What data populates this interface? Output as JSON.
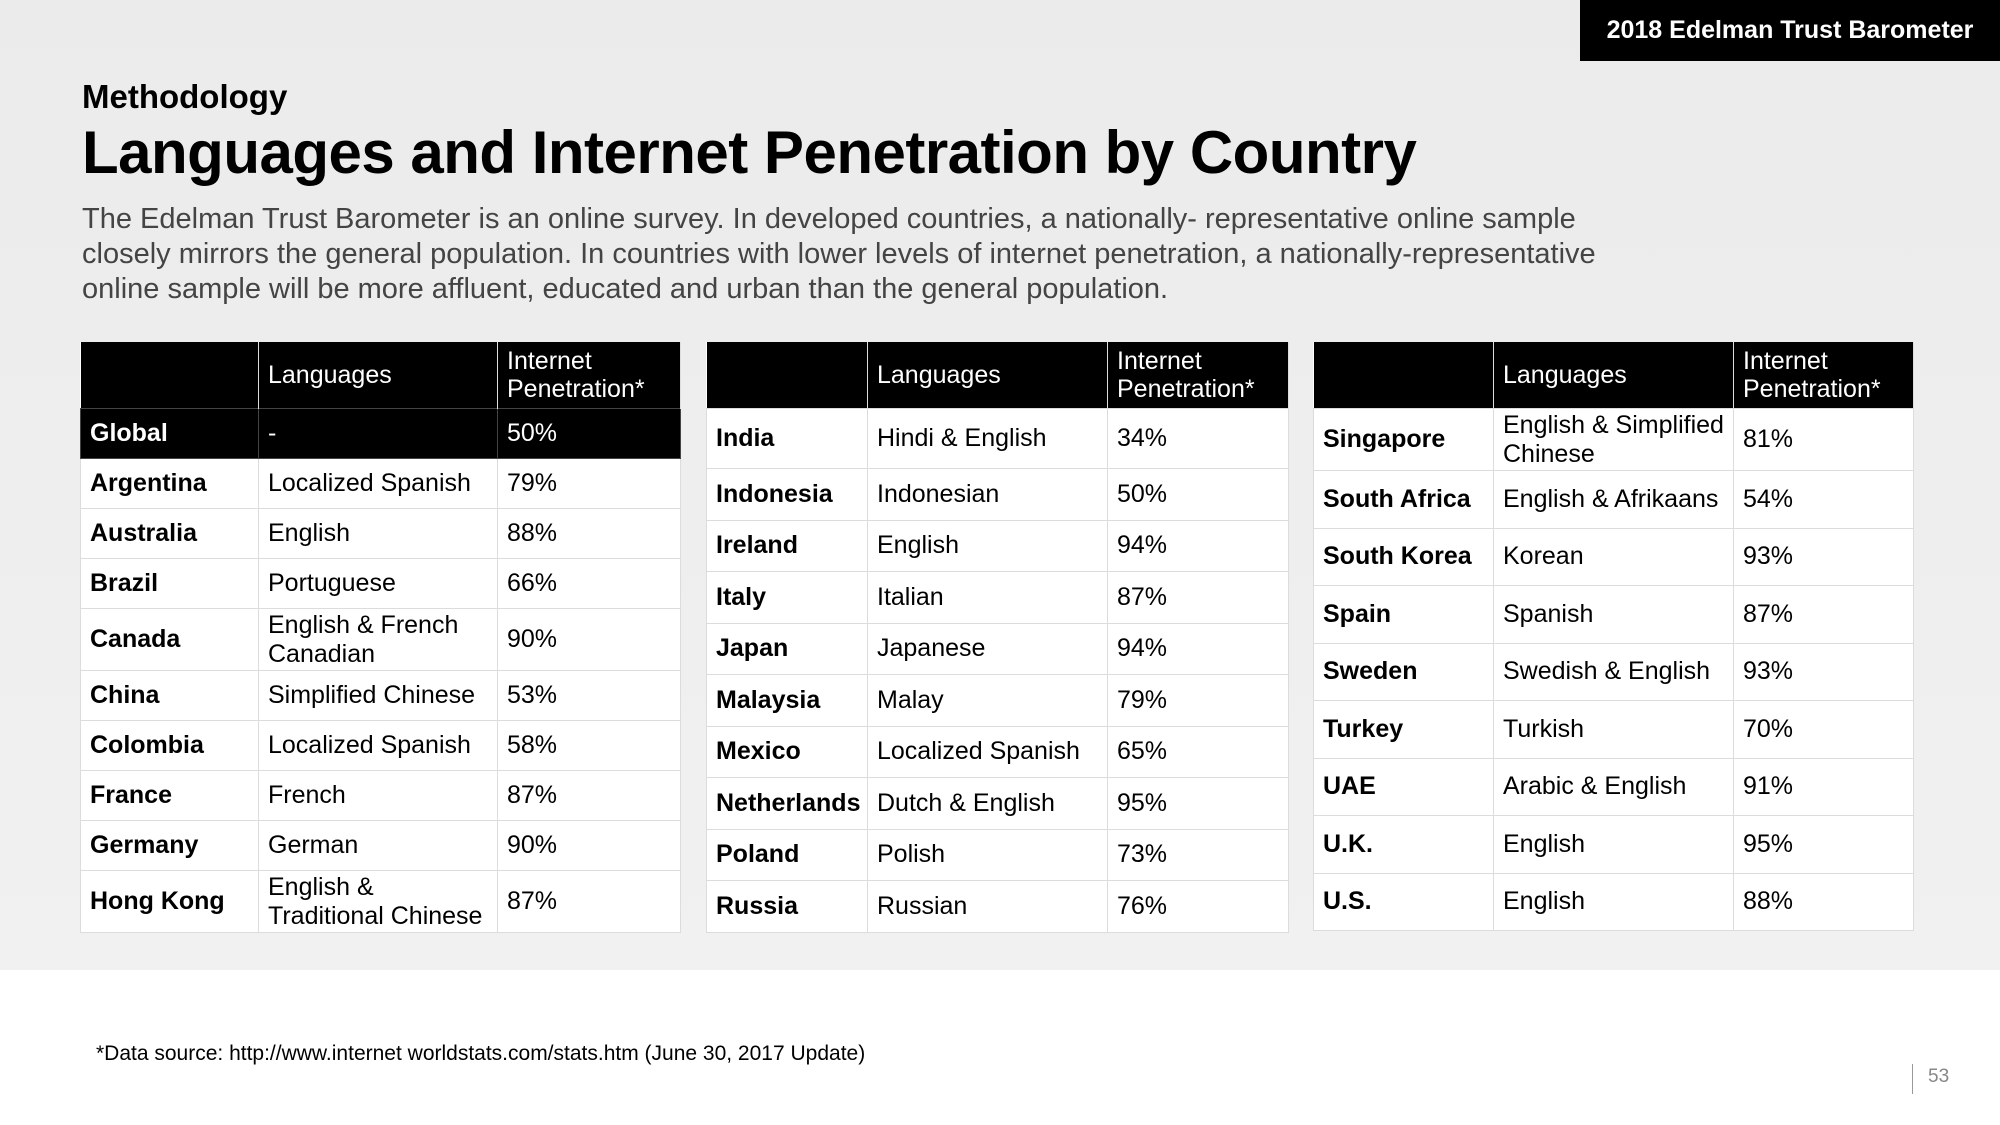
{
  "brand": "2018 Edelman Trust Barometer",
  "eyebrow": "Methodology",
  "title": "Languages and Internet Penetration by Country",
  "intro": "The Edelman Trust Barometer is an online survey. In developed countries, a nationally- representative online sample closely mirrors the general population. In countries with lower levels of internet penetration, a nationally-representative online sample will be more affluent, educated and urban than the general population.",
  "headers": {
    "country": "",
    "languages": "Languages",
    "penetration": "Internet Penetration*"
  },
  "tables": [
    {
      "rows": [
        {
          "country": "Global",
          "languages": "-",
          "penetration": "50%"
        },
        {
          "country": "Argentina",
          "languages": "Localized Spanish",
          "penetration": "79%"
        },
        {
          "country": "Australia",
          "languages": "English",
          "penetration": "88%"
        },
        {
          "country": "Brazil",
          "languages": "Portuguese",
          "penetration": "66%"
        },
        {
          "country": "Canada",
          "languages": "English & French Canadian",
          "penetration": "90%"
        },
        {
          "country": "China",
          "languages": "Simplified Chinese",
          "penetration": "53%"
        },
        {
          "country": "Colombia",
          "languages": "Localized Spanish",
          "penetration": "58%"
        },
        {
          "country": "France",
          "languages": "French",
          "penetration": "87%"
        },
        {
          "country": "Germany",
          "languages": "German",
          "penetration": "90%"
        },
        {
          "country": "Hong Kong",
          "languages": "English & Traditional Chinese",
          "penetration": "87%"
        }
      ]
    },
    {
      "rows": [
        {
          "country": "India",
          "languages": "Hindi & English",
          "penetration": "34%"
        },
        {
          "country": "Indonesia",
          "languages": "Indonesian",
          "penetration": "50%"
        },
        {
          "country": "Ireland",
          "languages": "English",
          "penetration": "94%"
        },
        {
          "country": "Italy",
          "languages": "Italian",
          "penetration": "87%"
        },
        {
          "country": "Japan",
          "languages": "Japanese",
          "penetration": "94%"
        },
        {
          "country": "Malaysia",
          "languages": "Malay",
          "penetration": "79%"
        },
        {
          "country": "Mexico",
          "languages": "Localized Spanish",
          "penetration": "65%"
        },
        {
          "country": "Netherlands",
          "languages": "Dutch & English",
          "penetration": "95%"
        },
        {
          "country": "Poland",
          "languages": "Polish",
          "penetration": "73%"
        },
        {
          "country": "Russia",
          "languages": "Russian",
          "penetration": "76%"
        }
      ]
    },
    {
      "rows": [
        {
          "country": "Singapore",
          "languages": "English & Simplified Chinese",
          "penetration": "81%"
        },
        {
          "country": "South Africa",
          "languages": "English & Afrikaans",
          "penetration": "54%"
        },
        {
          "country": "South Korea",
          "languages": "Korean",
          "penetration": "93%"
        },
        {
          "country": "Spain",
          "languages": "Spanish",
          "penetration": "87%"
        },
        {
          "country": "Sweden",
          "languages": "Swedish & English",
          "penetration": "93%"
        },
        {
          "country": "Turkey",
          "languages": "Turkish",
          "penetration": "70%"
        },
        {
          "country": "UAE",
          "languages": "Arabic & English",
          "penetration": "91%"
        },
        {
          "country": "U.K.",
          "languages": "English",
          "penetration": "95%"
        },
        {
          "country": "U.S.",
          "languages": "English",
          "penetration": "88%"
        }
      ]
    }
  ],
  "footnote": "*Data source: http://www.internet worldstats.com/stats.htm (June 30, 2017 Update)",
  "page_number": "53"
}
